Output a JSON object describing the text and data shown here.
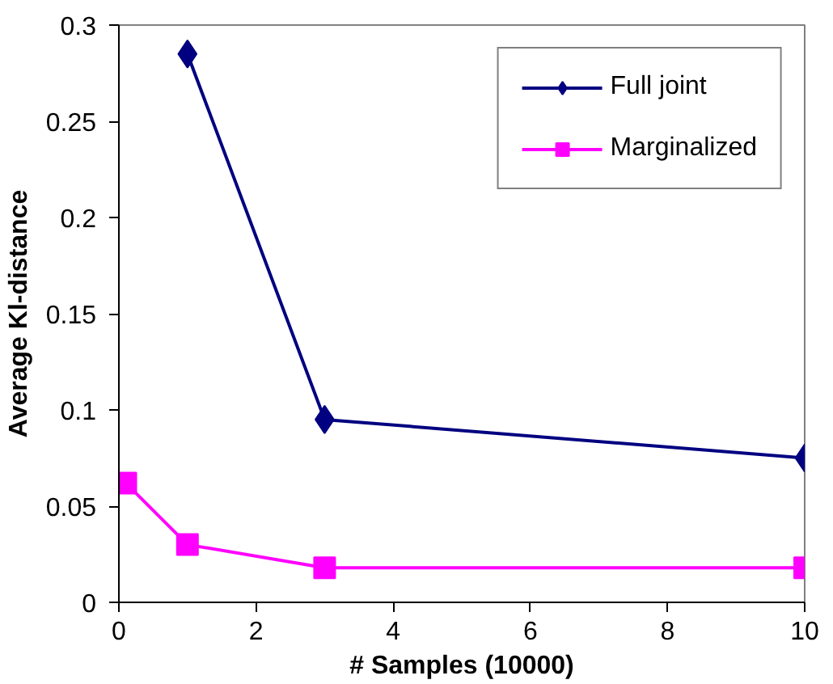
{
  "chart_data": {
    "type": "line",
    "xlabel": "# Samples (10000)",
    "ylabel": "Average Kl-distance",
    "xlim": [
      0,
      10
    ],
    "ylim": [
      0,
      0.3
    ],
    "xticks": [
      0,
      2,
      4,
      6,
      8,
      10
    ],
    "yticks": [
      0,
      0.05,
      0.1,
      0.15,
      0.2,
      0.25,
      0.3
    ],
    "grid": false,
    "legend": "top right",
    "series": [
      {
        "name": "Full joint",
        "color": "#000080",
        "marker": "diamond",
        "x": [
          1,
          3,
          10
        ],
        "values": [
          0.285,
          0.095,
          0.075
        ]
      },
      {
        "name": "Marginalized",
        "color": "#ff00ff",
        "marker": "square",
        "x": [
          0.1,
          1,
          3,
          10
        ],
        "values": [
          0.062,
          0.03,
          0.018,
          0.018
        ]
      }
    ]
  }
}
